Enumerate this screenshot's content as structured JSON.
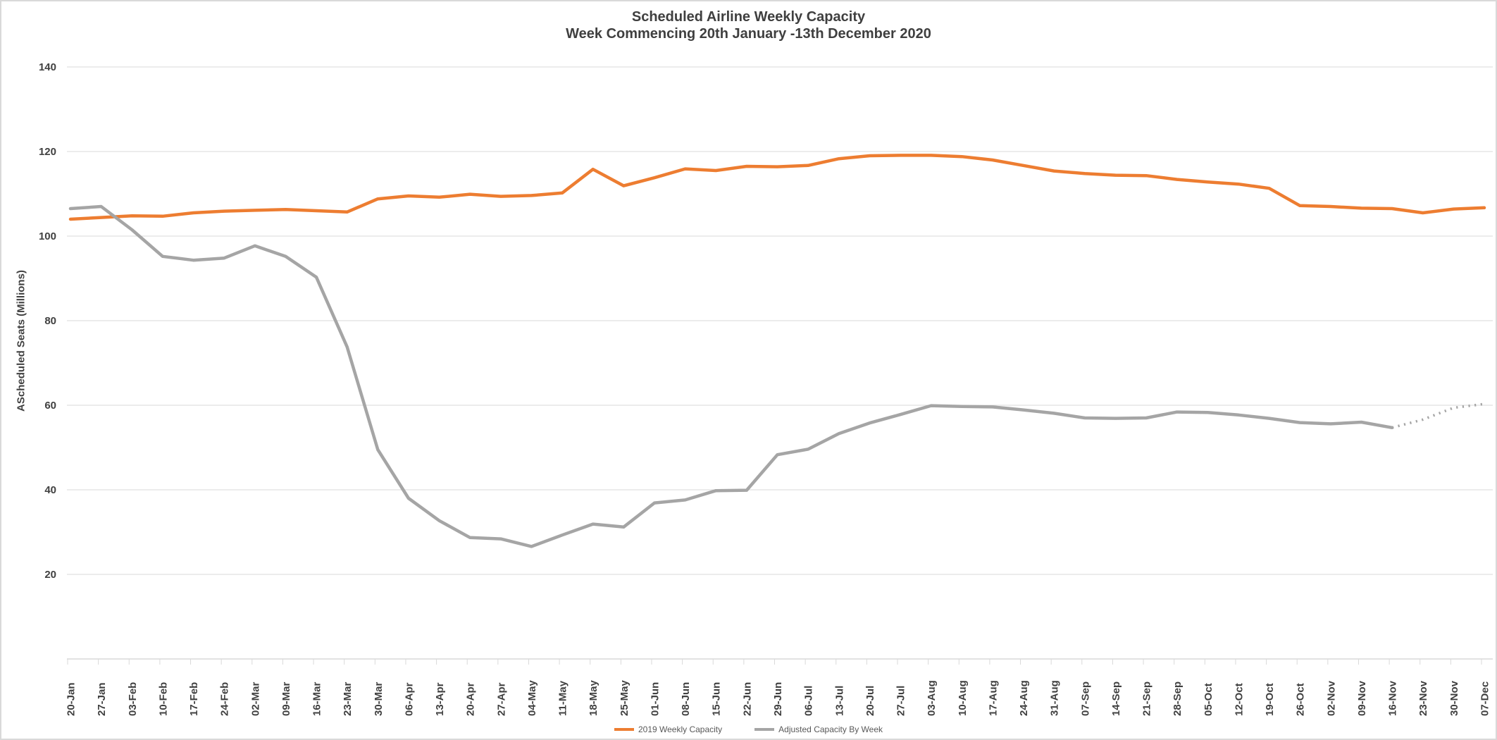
{
  "title": {
    "line1": "Scheduled Airline Weekly Capacity",
    "line2": "Week Commencing 20th January -13th December 2020"
  },
  "y_axis": {
    "title": "AScheduled Seats (Millions)",
    "ticks": [
      140,
      120,
      100,
      80,
      60,
      40,
      20
    ],
    "min": 0,
    "max": 140
  },
  "colors": {
    "series_2019": "#ED7D31",
    "series_adjusted": "#A5A5A5",
    "gridline": "#D9D9D9",
    "axis_text": "#404040",
    "legend_text": "#595959",
    "border": "#D9D9D9"
  },
  "chart_data": {
    "type": "line",
    "title": "Scheduled Airline Weekly Capacity",
    "subtitle": "Week Commencing 20th January -13th December 2020",
    "xlabel": "",
    "ylabel": "AScheduled Seats (Millions)",
    "ylim": [
      0,
      140
    ],
    "grid": "horizontal",
    "legend_position": "bottom",
    "categories": [
      "20-Jan",
      "27-Jan",
      "03-Feb",
      "10-Feb",
      "17-Feb",
      "24-Feb",
      "02-Mar",
      "09-Mar",
      "16-Mar",
      "23-Mar",
      "30-Mar",
      "06-Apr",
      "13-Apr",
      "20-Apr",
      "27-Apr",
      "04-May",
      "11-May",
      "18-May",
      "25-May",
      "01-Jun",
      "08-Jun",
      "15-Jun",
      "22-Jun",
      "29-Jun",
      "06-Jul",
      "13-Jul",
      "20-Jul",
      "27-Jul",
      "03-Aug",
      "10-Aug",
      "17-Aug",
      "24-Aug",
      "31-Aug",
      "07-Sep",
      "14-Sep",
      "21-Sep",
      "28-Sep",
      "05-Oct",
      "12-Oct",
      "19-Oct",
      "26-Oct",
      "02-Nov",
      "09-Nov",
      "16-Nov",
      "23-Nov",
      "30-Nov",
      "07-Dec"
    ],
    "series": [
      {
        "name": "2019 Weekly Capacity",
        "color": "#ED7D31",
        "style": "solid",
        "values": [
          104.0,
          104.4,
          104.8,
          104.7,
          105.5,
          105.9,
          106.1,
          106.3,
          106.0,
          105.7,
          108.8,
          109.5,
          109.2,
          109.9,
          109.4,
          109.6,
          110.2,
          115.8,
          111.9,
          113.8,
          115.9,
          115.5,
          116.5,
          116.4,
          116.7,
          118.3,
          119.0,
          119.1,
          119.1,
          118.8,
          118.0,
          116.7,
          115.4,
          114.8,
          114.4,
          114.3,
          113.4,
          112.8,
          112.3,
          111.3,
          107.2,
          107.0,
          106.6,
          106.5,
          105.5,
          106.4,
          106.7
        ]
      },
      {
        "name": "Adjusted Capacity By Week",
        "color": "#A5A5A5",
        "style": "solid_then_dotted",
        "dotted_from_index": 43,
        "values": [
          106.5,
          107.0,
          101.5,
          95.2,
          94.3,
          94.8,
          97.7,
          95.2,
          90.3,
          73.8,
          49.5,
          38.0,
          32.7,
          28.7,
          28.4,
          26.6,
          29.3,
          31.9,
          31.2,
          36.9,
          37.6,
          39.8,
          39.9,
          48.3,
          49.6,
          53.3,
          55.8,
          57.8,
          59.9,
          59.7,
          59.6,
          58.9,
          58.1,
          57.0,
          56.9,
          57.0,
          58.4,
          58.3,
          57.7,
          56.9,
          55.9,
          55.6,
          56.0,
          54.7,
          56.6,
          59.4,
          60.3
        ]
      }
    ]
  }
}
